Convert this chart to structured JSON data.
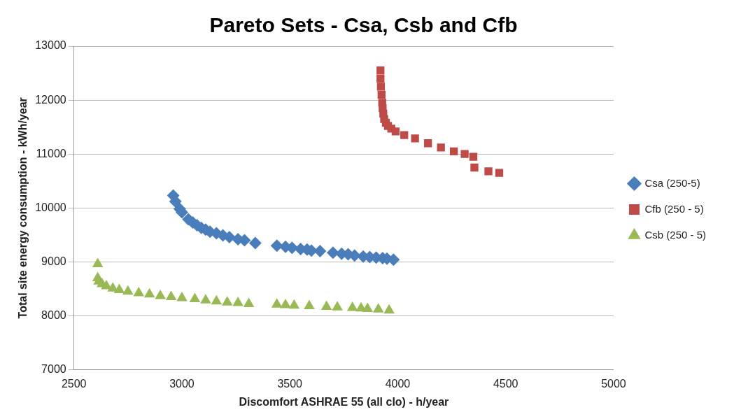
{
  "chart_data": {
    "type": "scatter",
    "title": "Pareto Sets - Csa, Csb and Cfb",
    "xlabel": "Discomfort ASHRAE 55 (all clo) - h/year",
    "ylabel": "Total site energy consumption - kWh/year",
    "xlim": [
      2500,
      5000
    ],
    "xticks": [
      2500,
      3000,
      3500,
      4000,
      4500,
      5000
    ],
    "ylim": [
      7000,
      13000
    ],
    "yticks": [
      7000,
      8000,
      9000,
      10000,
      11000,
      12000,
      13000
    ],
    "grid": "y",
    "legend": "right",
    "series": [
      {
        "name": "Csa (250-5)",
        "color": "#4a7ebb",
        "marker": "diamond",
        "x": [
          2960,
          2970,
          2990,
          3000,
          3030,
          3050,
          3070,
          3090,
          3110,
          3130,
          3160,
          3190,
          3220,
          3260,
          3290,
          3340,
          3440,
          3480,
          3510,
          3550,
          3580,
          3600,
          3640,
          3700,
          3740,
          3770,
          3800,
          3840,
          3870,
          3900,
          3930,
          3950,
          3980
        ],
        "values": [
          10230,
          10120,
          9980,
          9920,
          9790,
          9730,
          9680,
          9630,
          9600,
          9560,
          9530,
          9490,
          9460,
          9420,
          9400,
          9350,
          9300,
          9280,
          9260,
          9240,
          9230,
          9210,
          9200,
          9170,
          9150,
          9140,
          9120,
          9100,
          9090,
          9080,
          9070,
          9060,
          9040
        ]
      },
      {
        "name": "Cfb (250 - 5)",
        "color": "#be4b48",
        "marker": "square",
        "x": [
          3920,
          3920,
          3922,
          3925,
          3928,
          3930,
          3933,
          3937,
          3945,
          3955,
          3970,
          3990,
          4030,
          4080,
          4140,
          4200,
          4260,
          4310,
          4350,
          4355,
          4420,
          4470
        ],
        "values": [
          12550,
          12400,
          12250,
          12100,
          11950,
          11850,
          11750,
          11650,
          11580,
          11520,
          11470,
          11420,
          11350,
          11290,
          11200,
          11120,
          11050,
          11000,
          10950,
          10750,
          10680,
          10650
        ]
      },
      {
        "name": "Csb (250 - 5)",
        "color": "#98b954",
        "marker": "triangle",
        "x": [
          2610,
          2610,
          2615,
          2630,
          2650,
          2680,
          2710,
          2750,
          2800,
          2850,
          2900,
          2950,
          3000,
          3060,
          3110,
          3160,
          3210,
          3260,
          3310,
          3440,
          3480,
          3520,
          3590,
          3670,
          3720,
          3790,
          3830,
          3860,
          3910,
          3960
        ],
        "values": [
          8960,
          8700,
          8640,
          8590,
          8550,
          8510,
          8480,
          8450,
          8420,
          8400,
          8370,
          8350,
          8330,
          8310,
          8290,
          8270,
          8250,
          8240,
          8220,
          8210,
          8200,
          8190,
          8180,
          8170,
          8160,
          8150,
          8140,
          8130,
          8120,
          8100
        ]
      }
    ]
  }
}
